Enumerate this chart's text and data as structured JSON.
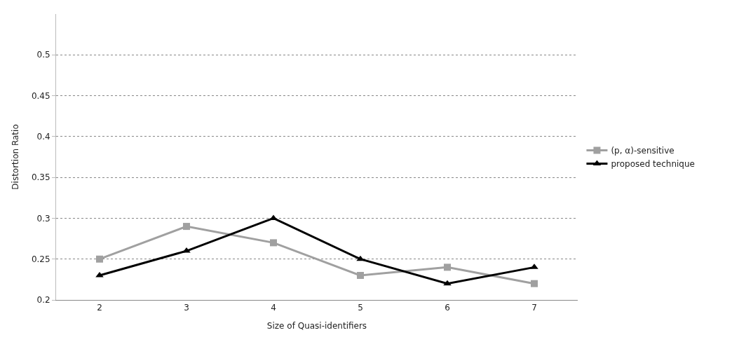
{
  "chart_data": {
    "type": "line",
    "xlabel": "Size of Quasi-identifiers",
    "ylabel": "Distortion Ratio",
    "categories": [
      "2",
      "3",
      "4",
      "5",
      "6",
      "7"
    ],
    "series": [
      {
        "name": "(p, α)-sensitive",
        "color": "#a0a0a0",
        "marker": "square",
        "values": [
          0.25,
          0.29,
          0.27,
          0.23,
          0.24,
          0.22
        ]
      },
      {
        "name": "proposed technique",
        "color": "#000000",
        "marker": "triangle",
        "values": [
          0.23,
          0.26,
          0.3,
          0.25,
          0.22,
          0.24
        ]
      }
    ],
    "ylim": [
      0.2,
      0.55
    ],
    "yticks": [
      {
        "value": 0.2,
        "label": "0.2"
      },
      0.25,
      {
        "value": 0.3,
        "label": "0.3"
      },
      0.35,
      {
        "value": 0.4,
        "label": "0.4"
      },
      0.45,
      {
        "value": 0.5,
        "label": "0.5"
      }
    ],
    "grid": "y",
    "legend": "right"
  }
}
